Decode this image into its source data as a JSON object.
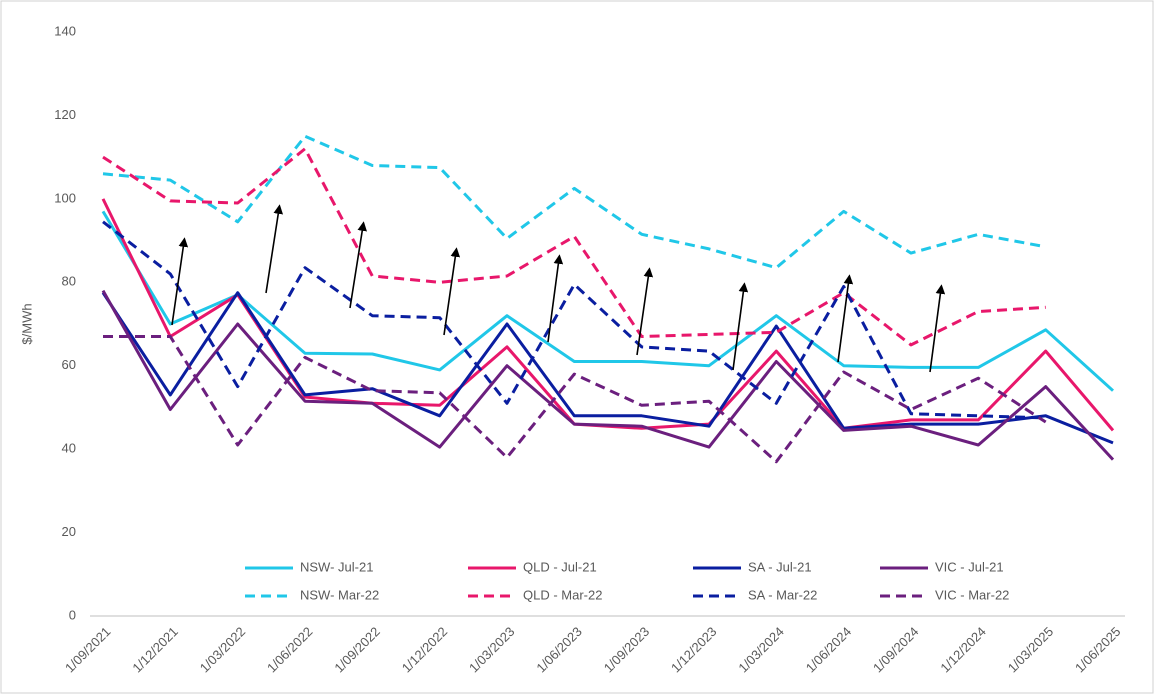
{
  "chart_data": {
    "type": "line",
    "y_label": "$/MWh",
    "categories": [
      "1/09/2021",
      "1/12/2021",
      "1/03/2022",
      "1/06/2022",
      "1/09/2022",
      "1/12/2022",
      "1/03/2023",
      "1/06/2023",
      "1/09/2023",
      "1/12/2023",
      "1/03/2024",
      "1/06/2024",
      "1/09/2024",
      "1/12/2024",
      "1/03/2025",
      "1/06/2025"
    ],
    "ylim": [
      0,
      140
    ],
    "yticks": [
      0,
      20,
      40,
      60,
      80,
      100,
      120,
      140
    ],
    "grid": false,
    "legend": "bottom",
    "series": [
      {
        "name": "NSW- Jul-21",
        "color": "#20c7e8",
        "dashed": false,
        "values": [
          97,
          70,
          77,
          63,
          62.8,
          59,
          72,
          61,
          61,
          60,
          72,
          60,
          59.6,
          59.6,
          68.6,
          54
        ]
      },
      {
        "name": "QLD - Jul-21",
        "color": "#e8176b",
        "dashed": false,
        "values": [
          100,
          67,
          77,
          52.5,
          51,
          50.5,
          64.5,
          46,
          45,
          46,
          63.5,
          45,
          47,
          47,
          63.5,
          44.5
        ]
      },
      {
        "name": "SA - Jul-21",
        "color": "#0a1ea0",
        "dashed": false,
        "values": [
          77.5,
          53,
          77.5,
          53,
          54.5,
          48,
          70,
          48,
          48,
          45.5,
          69.5,
          45,
          46,
          46,
          48,
          41.5
        ]
      },
      {
        "name": "VIC - Jul-21",
        "color": "#6b1f7e",
        "dashed": false,
        "values": [
          78,
          49.5,
          70,
          51.5,
          51,
          40.5,
          60,
          46,
          45.5,
          40.5,
          61,
          44.5,
          45.5,
          41,
          55,
          37.5
        ]
      },
      {
        "name": "NSW- Mar-22",
        "color": "#20c7e8",
        "dashed": true,
        "values": [
          106,
          104.5,
          94.5,
          115,
          108,
          107.5,
          90.5,
          102.5,
          91.5,
          88,
          83.5,
          97,
          87,
          91.5,
          88.5,
          null
        ]
      },
      {
        "name": "QLD - Mar-22",
        "color": "#e8176b",
        "dashed": true,
        "values": [
          110,
          99.5,
          99,
          112,
          81.5,
          80,
          81.5,
          91,
          67,
          67.5,
          68,
          77.5,
          65,
          73,
          74,
          null
        ]
      },
      {
        "name": "SA - Mar-22",
        "color": "#0a1ea0",
        "dashed": true,
        "values": [
          94.5,
          82,
          55,
          83.5,
          72,
          71.5,
          51,
          79.5,
          64.5,
          63.5,
          51,
          79,
          48.5,
          48,
          47.5,
          null
        ]
      },
      {
        "name": "VIC - Mar-22",
        "color": "#6b1f7e",
        "dashed": true,
        "values": [
          67,
          67,
          41,
          62,
          54,
          53.5,
          38,
          58,
          50.5,
          51.5,
          37,
          58.5,
          49.5,
          57,
          46.5,
          null
        ]
      }
    ]
  }
}
